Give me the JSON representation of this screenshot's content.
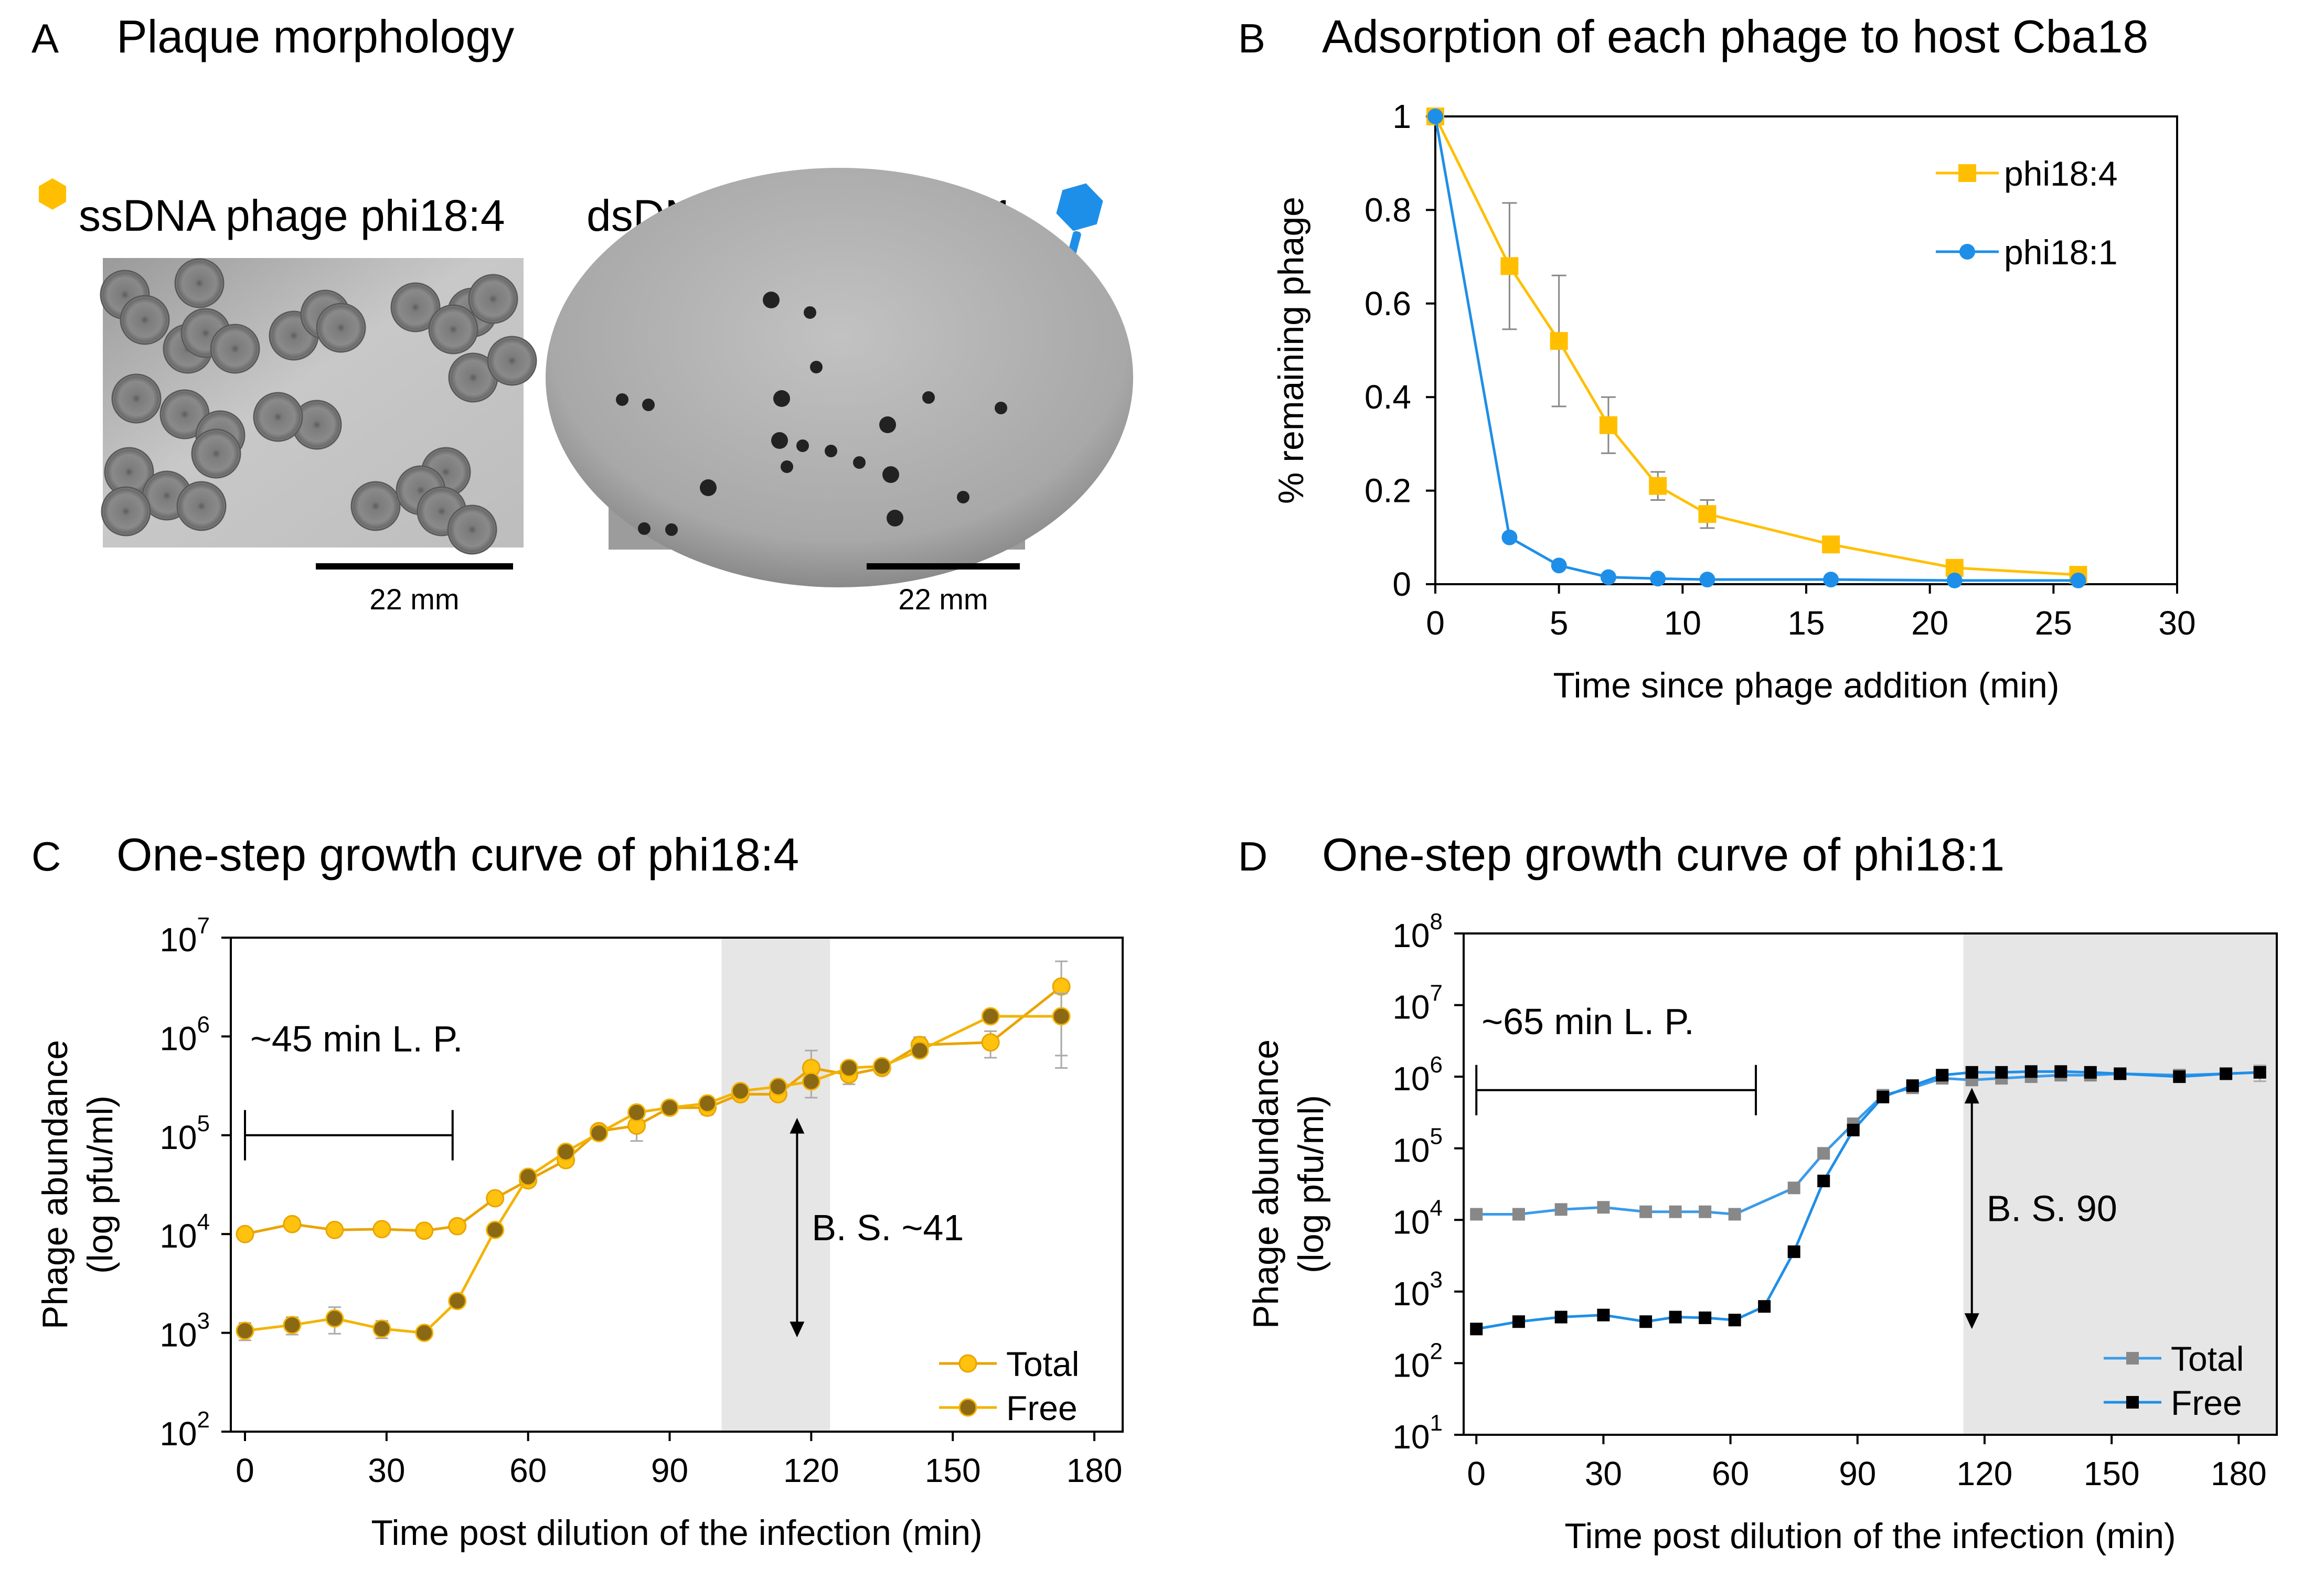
{
  "panel_a": {
    "letter": "A",
    "title": "Plaque morphology",
    "left_label": "ssDNA phage phi18:4",
    "right_label": "dsDNA phage phi18:1",
    "left_scale": "22 mm",
    "right_scale": "22 mm",
    "colors": {
      "phi18_4": "#FFBF00",
      "phi18_1": "#1E8FE8"
    }
  },
  "chart_data": [
    {
      "id": "B",
      "letter": "B",
      "type": "line",
      "title": "Adsorption of each phage to host Cba18",
      "xlabel": "Time since phage addition (min)",
      "ylabel": "% remaining phage",
      "xlim": [
        0,
        30
      ],
      "ylim": [
        0,
        1
      ],
      "xticks": [
        0,
        5,
        10,
        15,
        20,
        25,
        30
      ],
      "yticks": [
        0,
        0.2,
        0.4,
        0.6,
        0.8,
        1
      ],
      "ytick_labels": [
        "0",
        "0.2",
        "0.4",
        "0.6",
        "0.8",
        "1"
      ],
      "legend_position": "top-right",
      "series": [
        {
          "name": "phi18:4",
          "color": "#FFBF00",
          "marker": "square",
          "x": [
            0,
            3,
            5,
            7,
            9,
            11,
            16,
            21,
            26
          ],
          "y": [
            1.0,
            0.68,
            0.52,
            0.34,
            0.21,
            0.15,
            0.085,
            0.035,
            0.02
          ],
          "err": [
            0,
            0.135,
            0.14,
            0.06,
            0.03,
            0.03,
            0.01,
            0.005,
            0.005
          ]
        },
        {
          "name": "phi18:1",
          "color": "#1E8FE8",
          "marker": "circle",
          "x": [
            0,
            3,
            5,
            7,
            9,
            11,
            16,
            21,
            26
          ],
          "y": [
            1.0,
            0.1,
            0.04,
            0.015,
            0.012,
            0.01,
            0.01,
            0.008,
            0.008
          ],
          "err": [
            0,
            0,
            0,
            0,
            0,
            0,
            0,
            0,
            0
          ]
        }
      ]
    },
    {
      "id": "C",
      "letter": "C",
      "type": "line",
      "title": "One-step growth curve of phi18:4",
      "xlabel": "Time post dilution of the infection (min)",
      "ylabel_line1": "Phage abundance",
      "ylabel_line2": "(log pfu/ml)",
      "log_y": true,
      "xlim": [
        -3,
        186
      ],
      "ylim_exp": [
        2,
        7
      ],
      "xticks": [
        0,
        30,
        60,
        90,
        120,
        150,
        180
      ],
      "yexp": [
        2,
        3,
        4,
        5,
        6,
        7
      ],
      "ytick_base": "10",
      "shade_x": [
        101,
        124
      ],
      "latent_bar": {
        "x0": 0,
        "x1": 44,
        "y": 100000,
        "label": "~45 min L. P.",
        "label_y": 900000
      },
      "burst_arrow": {
        "x": 117,
        "y0": 900,
        "y1": 150000,
        "label": "B. S.  ~41"
      },
      "legend_position": "bottom-right",
      "series": [
        {
          "name": "Total",
          "color": "#FFC20E",
          "stroke": "#E9A400",
          "marker": "circle",
          "x": [
            0,
            10,
            19,
            29,
            38,
            45,
            53,
            60,
            68,
            75,
            83,
            90,
            98,
            105,
            113,
            120,
            128,
            135,
            143,
            158,
            173
          ],
          "y": [
            10000,
            12600,
            11000,
            11200,
            10800,
            12000,
            23000,
            35000,
            56000,
            110000,
            125000,
            190000,
            190000,
            260000,
            260000,
            480000,
            410000,
            480000,
            820000,
            870000,
            3200000
          ],
          "err_frac": [
            0.05,
            0.05,
            0.05,
            0.05,
            0.05,
            0.05,
            0.08,
            0.08,
            0.1,
            0.1,
            0.3,
            0.1,
            0.15,
            0.1,
            0.1,
            0.5,
            0.2,
            0.1,
            0.2,
            0.3,
            0.8
          ]
        },
        {
          "name": "Free",
          "color": "#8B6914",
          "stroke": "#F3B300",
          "marker": "circle",
          "x": [
            0,
            10,
            19,
            29,
            38,
            45,
            53,
            60,
            68,
            75,
            83,
            90,
            98,
            105,
            113,
            120,
            128,
            135,
            143,
            158,
            173
          ],
          "y": [
            1050,
            1200,
            1400,
            1100,
            1000,
            2100,
            11000,
            38000,
            68000,
            105000,
            170000,
            190000,
            210000,
            280000,
            310000,
            350000,
            480000,
            500000,
            720000,
            1600000,
            1600000
          ],
          "err_frac": [
            0.2,
            0.2,
            0.3,
            0.2,
            0.1,
            0.05,
            0.05,
            0.05,
            0.05,
            0.05,
            0.05,
            0.05,
            0.05,
            0.05,
            0.05,
            0.05,
            0.05,
            0.05,
            0.1,
            0.1,
            0.7
          ]
        }
      ]
    },
    {
      "id": "D",
      "letter": "D",
      "type": "line",
      "title": "One-step growth curve of phi18:1",
      "xlabel": "Time post dilution of the infection (min)",
      "ylabel_line1": "Phage abundance",
      "ylabel_line2": "(log pfu/ml)",
      "log_y": true,
      "xlim": [
        -3,
        189
      ],
      "ylim_exp": [
        1,
        8
      ],
      "xticks": [
        0,
        30,
        60,
        90,
        120,
        150,
        180
      ],
      "yexp": [
        1,
        2,
        3,
        4,
        5,
        6,
        7,
        8
      ],
      "ytick_base": "10",
      "shade_x": [
        115,
        189
      ],
      "latent_bar": {
        "x0": 0,
        "x1": 66,
        "y": 650000,
        "label": "~65 min L. P.",
        "label_y": 5500000
      },
      "burst_arrow": {
        "x": 117,
        "y0": 300,
        "y1": 700000,
        "label": "B. S.  90"
      },
      "legend_position": "bottom-right",
      "series": [
        {
          "name": "Total",
          "color": "#888888",
          "stroke": "#3A9BEA",
          "marker": "square",
          "x": [
            0,
            10,
            20,
            30,
            40,
            47,
            54,
            61,
            75,
            82,
            89,
            96,
            103,
            110,
            117,
            124,
            131,
            138,
            145,
            152,
            166,
            177,
            185
          ],
          "y": [
            12000,
            12000,
            14000,
            15000,
            13000,
            13000,
            13000,
            12000,
            28000,
            85000,
            220000,
            550000,
            700000,
            950000,
            900000,
            950000,
            1000000,
            1050000,
            1050000,
            1100000,
            1050000,
            1100000,
            1150000
          ],
          "err_frac": [
            0.05,
            0.05,
            0.05,
            0.05,
            0.05,
            0.05,
            0.05,
            0.05,
            0.05,
            0.05,
            0.05,
            0.05,
            0.05,
            0.05,
            0.15,
            0.15,
            0.15,
            0.15,
            0.1,
            0.1,
            0.1,
            0.1,
            0.25
          ]
        },
        {
          "name": "Free",
          "color": "#000000",
          "stroke": "#1E8FE8",
          "marker": "square",
          "x": [
            0,
            10,
            20,
            30,
            40,
            47,
            54,
            61,
            68,
            75,
            82,
            89,
            96,
            103,
            110,
            117,
            124,
            131,
            138,
            145,
            152,
            166,
            177,
            185
          ],
          "y": [
            300,
            380,
            440,
            470,
            380,
            440,
            430,
            400,
            620,
            3600,
            35000,
            180000,
            520000,
            750000,
            1050000,
            1150000,
            1150000,
            1180000,
            1180000,
            1150000,
            1100000,
            1000000,
            1100000,
            1150000
          ],
          "err_frac": [
            0.05,
            0.05,
            0.05,
            0.05,
            0.05,
            0.05,
            0.05,
            0.05,
            0.05,
            0.05,
            0.05,
            0.05,
            0.05,
            0.05,
            0.05,
            0.05,
            0.05,
            0.05,
            0.05,
            0.05,
            0.05,
            0.05,
            0.05,
            0.05
          ]
        }
      ]
    }
  ]
}
